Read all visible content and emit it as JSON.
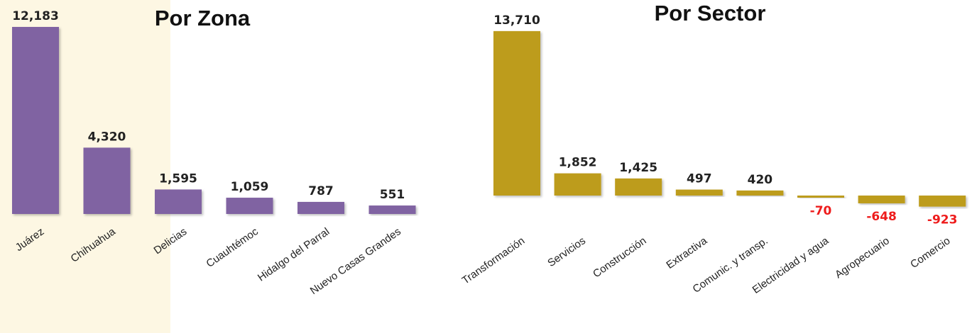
{
  "colors": {
    "zone_bar": "#8064a2",
    "sector_bar": "#bd9c1a",
    "negative_label": "#ee1c1c",
    "highlight_band": "#fdf7e3"
  },
  "chart_data": [
    {
      "type": "bar",
      "title": "Por Zona",
      "categories": [
        "Juárez",
        "Chihuahua",
        "Delicias",
        "Cuauhtémoc",
        "Hidalgo del Parral",
        "Nuevo Casas Grandes"
      ],
      "values": [
        12183,
        4320,
        1595,
        1059,
        787,
        551
      ],
      "value_labels": [
        "12,183",
        "4,320",
        "1,595",
        "1,059",
        "787",
        "551"
      ],
      "highlight_categories": [
        "Juárez",
        "Chihuahua"
      ],
      "xlabel": "",
      "ylabel": ""
    },
    {
      "type": "bar",
      "title": "Por Sector",
      "categories": [
        "Transformación",
        "Servicios",
        "Construcción",
        "Extractiva",
        "Comunic. y transp.",
        "Electricidad y agua",
        "Agropecuario",
        "Comercio"
      ],
      "values": [
        13710,
        1852,
        1425,
        497,
        420,
        -70,
        -648,
        -923
      ],
      "value_labels": [
        "13,710",
        "1,852",
        "1,425",
        "497",
        "420",
        "-70",
        "-648",
        "-923"
      ],
      "xlabel": "",
      "ylabel": ""
    }
  ]
}
